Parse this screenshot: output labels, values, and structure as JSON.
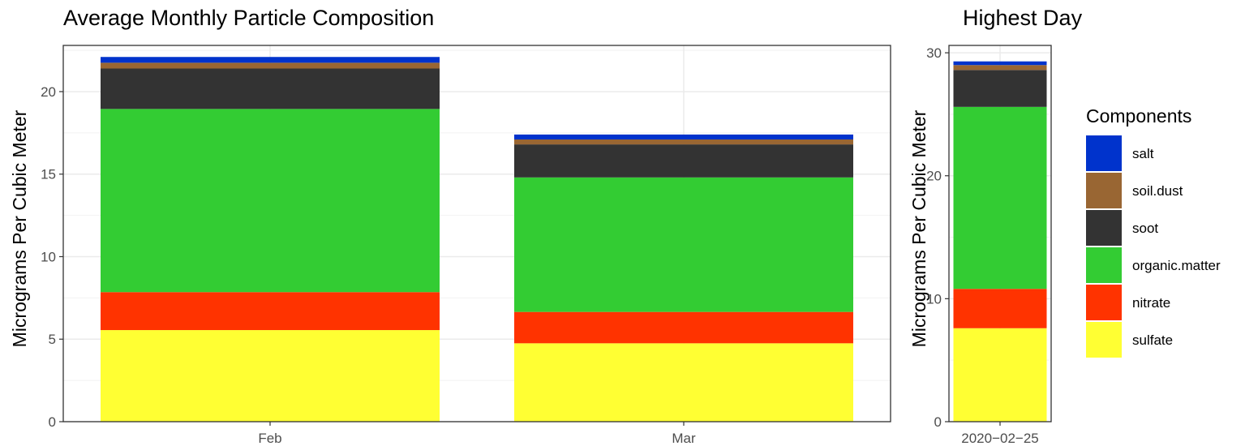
{
  "chart_data": [
    {
      "type": "bar",
      "stacked": true,
      "title": "Average Monthly Particle Composition",
      "xlabel": "",
      "ylabel": "Micrograms Per Cubic Meter",
      "categories": [
        "Feb",
        "Mar"
      ],
      "ylim": [
        0,
        22.8
      ],
      "yticks": [
        0,
        5,
        10,
        15,
        20
      ],
      "grid": true,
      "series": [
        {
          "name": "sulfate",
          "values": [
            5.55,
            4.75
          ]
        },
        {
          "name": "nitrate",
          "values": [
            2.3,
            1.9
          ]
        },
        {
          "name": "organic.matter",
          "values": [
            11.1,
            8.15
          ]
        },
        {
          "name": "soot",
          "values": [
            2.45,
            2.0
          ]
        },
        {
          "name": "soil.dust",
          "values": [
            0.35,
            0.3
          ]
        },
        {
          "name": "salt",
          "values": [
            0.35,
            0.3
          ]
        }
      ]
    },
    {
      "type": "bar",
      "stacked": true,
      "title": "Highest Day",
      "xlabel": "",
      "ylabel": "Micrograms Per Cubic Meter",
      "categories": [
        "2020−02−25"
      ],
      "ylim": [
        0,
        30.6
      ],
      "yticks": [
        0,
        10,
        20,
        30
      ],
      "grid": true,
      "series": [
        {
          "name": "sulfate",
          "values": [
            7.6
          ]
        },
        {
          "name": "nitrate",
          "values": [
            3.2
          ]
        },
        {
          "name": "organic.matter",
          "values": [
            14.8
          ]
        },
        {
          "name": "soot",
          "values": [
            3.0
          ]
        },
        {
          "name": "soil.dust",
          "values": [
            0.4
          ]
        },
        {
          "name": "salt",
          "values": [
            0.3
          ]
        }
      ]
    }
  ],
  "legend": {
    "title": "Components",
    "position": "right",
    "items": [
      "salt",
      "soil.dust",
      "soot",
      "organic.matter",
      "nitrate",
      "sulfate"
    ]
  },
  "colors": {
    "sulfate": "#FFFF33",
    "nitrate": "#FF3300",
    "organic.matter": "#33CC33",
    "soot": "#333333",
    "soil.dust": "#996633",
    "salt": "#0033CC"
  }
}
